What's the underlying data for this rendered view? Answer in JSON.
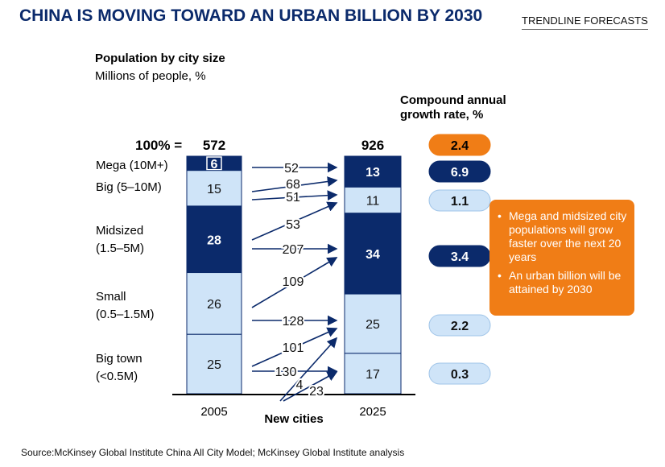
{
  "header": {
    "title": "CHINA IS MOVING TOWARD AN URBAN BILLION BY 2030",
    "tag": "TRENDLINE FORECASTS"
  },
  "chart_data": {
    "type": "bar",
    "title": "Population by city size",
    "subtitle": "Millions of people, %",
    "total_prefix": "100% =",
    "categories": [
      "2005",
      "2025"
    ],
    "totals": [
      572,
      926
    ],
    "segments": [
      {
        "label": "Mega (10M+)",
        "values": [
          6,
          13
        ],
        "cagr": 6.9,
        "style": "dark"
      },
      {
        "label": "Big (5–10M)",
        "values": [
          15,
          11
        ],
        "cagr": 1.1,
        "style": "light"
      },
      {
        "label": "Midsized (1.5–5M)",
        "values": [
          28,
          34
        ],
        "cagr": 3.4,
        "style": "dark"
      },
      {
        "label": "Small (0.5–1.5M)",
        "values": [
          26,
          25
        ],
        "cagr": 2.2,
        "style": "light"
      },
      {
        "label": "Big town (<0.5M)",
        "values": [
          25,
          17
        ],
        "cagr": 0.3,
        "style": "light"
      }
    ],
    "category_labels": [
      [
        "Mega (10M+)"
      ],
      [
        "Big (5–10M)"
      ],
      [
        "Midsized",
        "(1.5–5M)"
      ],
      [
        "Small",
        "(0.5–1.5M)"
      ],
      [
        "Big town",
        "(<0.5M)"
      ]
    ],
    "flows": [
      "52",
      "68",
      "51",
      "53",
      "207",
      "109",
      "128",
      "101",
      "130",
      "4",
      "23"
    ],
    "flow_axis_label": "New cities",
    "cagr_title": [
      "Compound annual",
      "growth rate, %"
    ],
    "cagr_total": 2.4,
    "colors": {
      "dark": "#0b2a6b",
      "light": "#cfe4f8",
      "orange": "#f07d16"
    }
  },
  "note": {
    "bullets": [
      "Mega and midsized city populations will grow faster over the next 20 years",
      "An urban billion will be attained by 2030"
    ]
  },
  "footer": {
    "source": "Source:McKinsey Global Institute China All City Model; McKinsey Global Institute analysis"
  }
}
